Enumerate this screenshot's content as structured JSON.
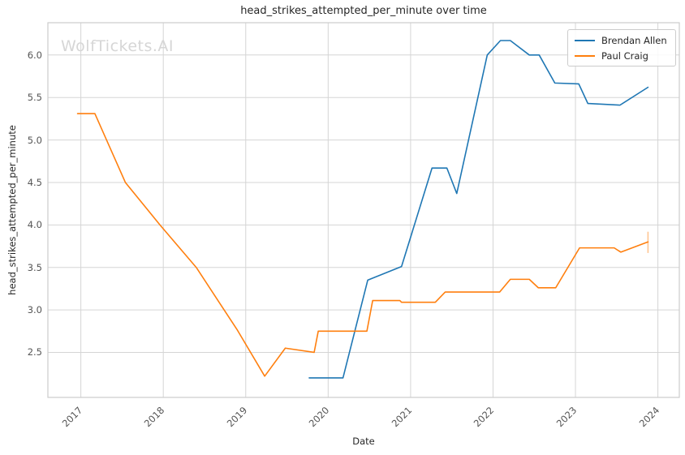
{
  "chart": {
    "title": "head_strikes_attempted_per_minute over time",
    "watermark": "WolfTickets.AI",
    "xlabel": "Date",
    "ylabel": "head_strikes_attempted_per_minute"
  },
  "legend": {
    "items": [
      {
        "label": "Brendan Allen",
        "color": "#1f77b4"
      },
      {
        "label": "Paul Craig",
        "color": "#ff7f0e"
      }
    ]
  },
  "chart_data": {
    "type": "line",
    "title": "head_strikes_attempted_per_minute over time",
    "xlabel": "Date",
    "ylabel": "head_strikes_attempted_per_minute",
    "grid": true,
    "legend_position": "upper right",
    "xlim": [
      2016.6,
      2024.26
    ],
    "ylim": [
      1.97,
      6.38
    ],
    "x_ticks": [
      2017,
      2018,
      2019,
      2020,
      2021,
      2022,
      2023,
      2024
    ],
    "y_ticks": [
      2.5,
      3.0,
      3.5,
      4.0,
      4.5,
      5.0,
      5.5,
      6.0
    ],
    "colors": {
      "grid": "#d5d5d5",
      "spine": "#cccccc"
    },
    "series": [
      {
        "name": "Brendan Allen",
        "color": "#1f77b4",
        "points": [
          [
            2019.77,
            2.2
          ],
          [
            2020.18,
            2.2
          ],
          [
            2020.48,
            3.35
          ],
          [
            2020.89,
            3.51
          ],
          [
            2021.26,
            4.67
          ],
          [
            2021.44,
            4.67
          ],
          [
            2021.56,
            4.37
          ],
          [
            2021.93,
            6.0
          ],
          [
            2022.09,
            6.17
          ],
          [
            2022.21,
            6.17
          ],
          [
            2022.44,
            6.0
          ],
          [
            2022.56,
            6.0
          ],
          [
            2022.75,
            5.67
          ],
          [
            2023.04,
            5.66
          ],
          [
            2023.15,
            5.43
          ],
          [
            2023.54,
            5.41
          ],
          [
            2023.88,
            5.62
          ]
        ]
      },
      {
        "name": "Paul Craig",
        "color": "#ff7f0e",
        "points": [
          [
            2016.96,
            5.31
          ],
          [
            2017.17,
            5.31
          ],
          [
            2017.54,
            4.5
          ],
          [
            2017.96,
            4.0
          ],
          [
            2018.4,
            3.5
          ],
          [
            2018.9,
            2.76
          ],
          [
            2019.23,
            2.22
          ],
          [
            2019.48,
            2.55
          ],
          [
            2019.83,
            2.5
          ],
          [
            2019.88,
            2.75
          ],
          [
            2020.47,
            2.75
          ],
          [
            2020.54,
            3.11
          ],
          [
            2020.87,
            3.11
          ],
          [
            2020.89,
            3.09
          ],
          [
            2021.3,
            3.09
          ],
          [
            2021.42,
            3.21
          ],
          [
            2022.08,
            3.21
          ],
          [
            2022.21,
            3.36
          ],
          [
            2022.44,
            3.36
          ],
          [
            2022.55,
            3.26
          ],
          [
            2022.76,
            3.26
          ],
          [
            2023.05,
            3.73
          ],
          [
            2023.47,
            3.73
          ],
          [
            2023.55,
            3.68
          ],
          [
            2023.88,
            3.8
          ]
        ],
        "end_marker": {
          "x": 2023.88,
          "y1": 3.67,
          "y2": 3.92,
          "opacity": 0.45
        }
      }
    ]
  }
}
